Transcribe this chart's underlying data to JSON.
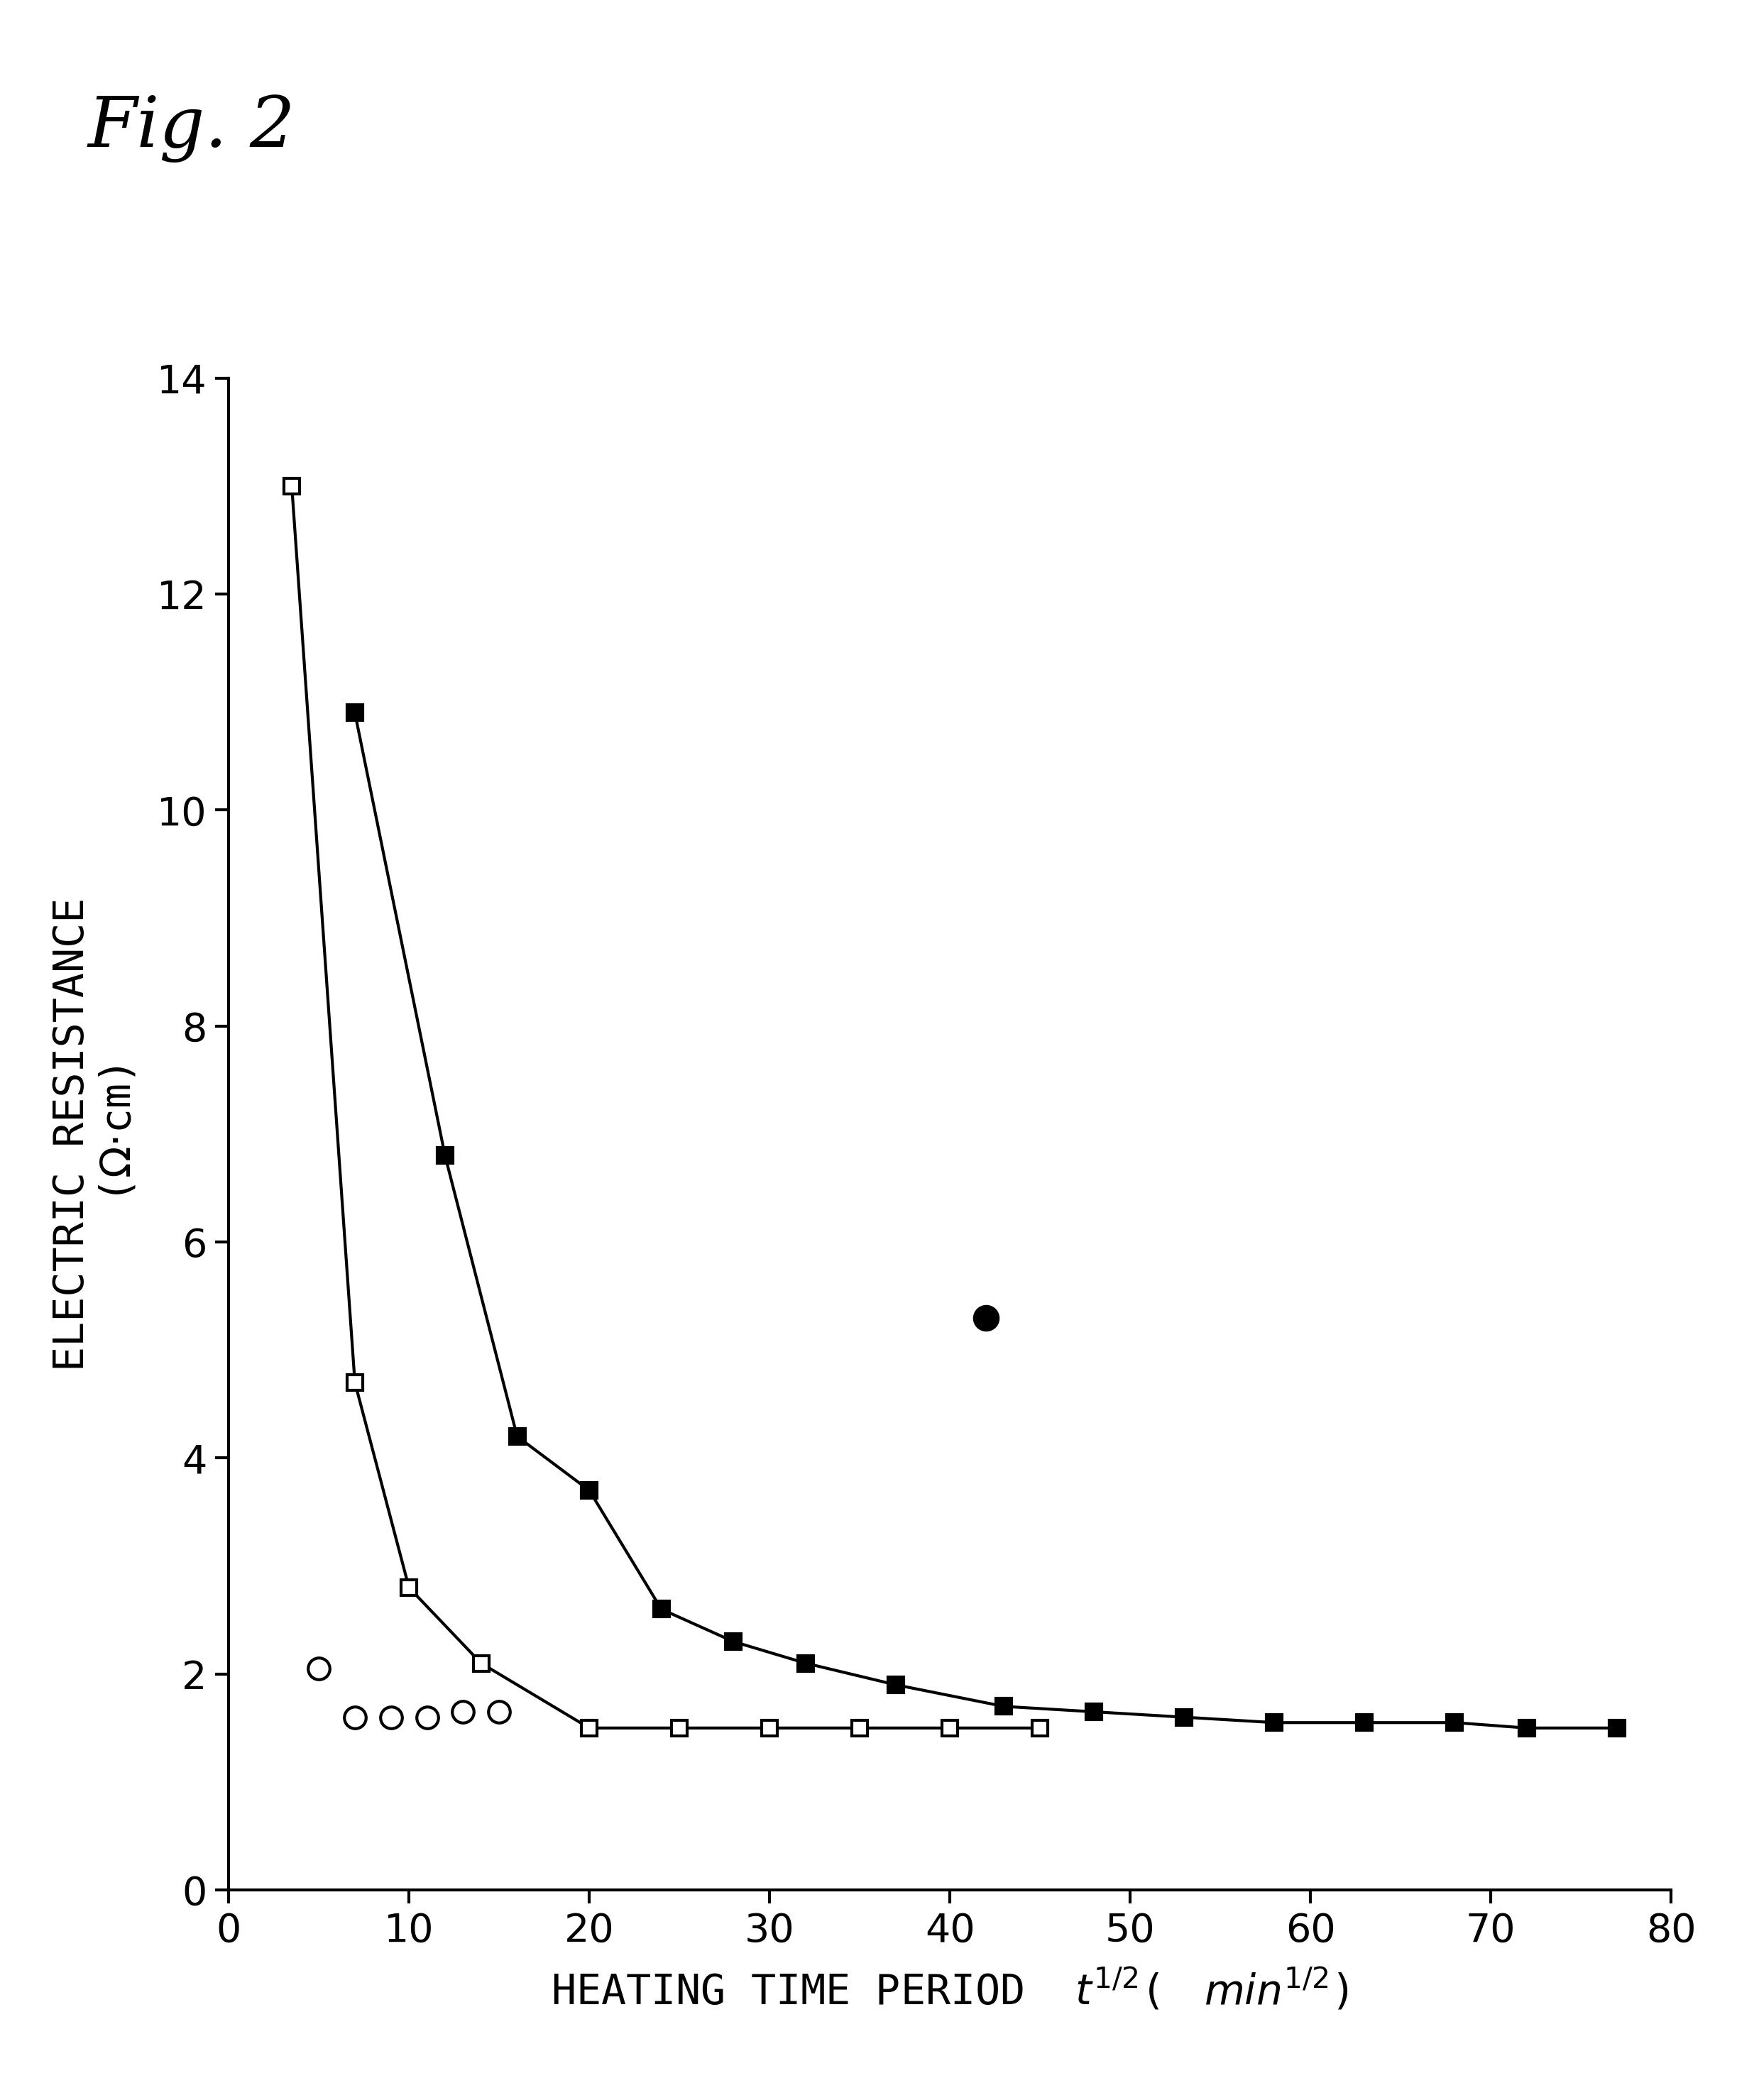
{
  "title": "Fig. 2",
  "xlim": [
    0,
    80
  ],
  "ylim": [
    0,
    14
  ],
  "xticks": [
    0,
    10,
    20,
    30,
    40,
    50,
    60,
    70,
    80
  ],
  "yticks": [
    0,
    2,
    4,
    6,
    8,
    10,
    12,
    14
  ],
  "series_open_square": {
    "x": [
      3.5,
      7,
      10,
      14,
      20,
      25,
      30,
      35,
      40,
      45
    ],
    "y": [
      13.0,
      4.7,
      2.8,
      2.1,
      1.5,
      1.5,
      1.5,
      1.5,
      1.5,
      1.5
    ]
  },
  "series_filled_square": {
    "x": [
      7,
      12,
      16,
      20,
      24,
      28,
      32,
      37,
      43,
      48,
      53,
      58,
      63,
      68,
      72,
      77
    ],
    "y": [
      10.9,
      6.8,
      4.2,
      3.7,
      2.6,
      2.3,
      2.1,
      1.9,
      1.7,
      1.65,
      1.6,
      1.55,
      1.55,
      1.55,
      1.5,
      1.5
    ]
  },
  "series_open_circle": {
    "x": [
      5,
      7,
      9,
      11,
      13,
      15
    ],
    "y": [
      2.05,
      1.6,
      1.6,
      1.6,
      1.65,
      1.65
    ]
  },
  "series_filled_circle": {
    "x": [
      42
    ],
    "y": [
      5.3
    ]
  },
  "background_color": "#ffffff",
  "line_color": "#000000",
  "marker_color": "#000000",
  "title_fontsize": 72,
  "label_fontsize": 42,
  "tick_fontsize": 40,
  "marker_size_square": 16,
  "marker_size_circle": 22,
  "marker_size_filled_circle": 24,
  "linewidth": 3.0,
  "marker_linewidth": 3.0
}
